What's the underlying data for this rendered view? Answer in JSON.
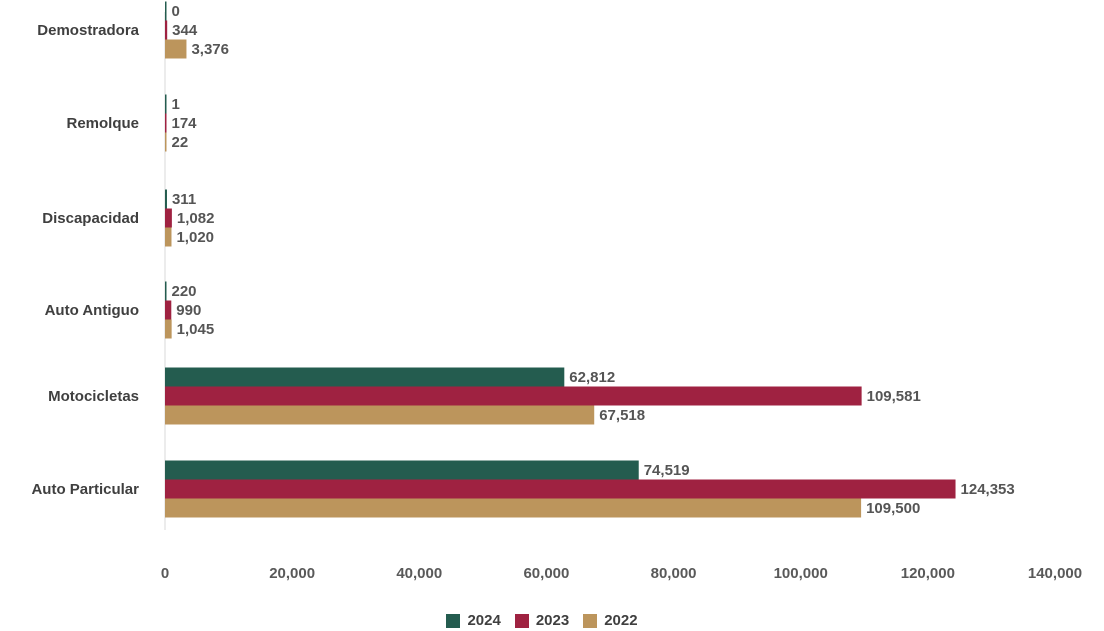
{
  "chart_data": {
    "type": "bar",
    "orientation": "horizontal",
    "categories": [
      "Auto Particular",
      "Motocicletas",
      "Auto Antiguo",
      "Discapacidad",
      "Remolque",
      "Demostradora"
    ],
    "series": [
      {
        "name": "2024",
        "color": "#245c4f",
        "values": [
          74519,
          62812,
          220,
          311,
          1,
          0
        ]
      },
      {
        "name": "2023",
        "color": "#9f2241",
        "values": [
          124353,
          109581,
          990,
          1082,
          174,
          344
        ]
      },
      {
        "name": "2022",
        "color": "#bc955c",
        "values": [
          109500,
          67518,
          1045,
          1020,
          22,
          3376
        ]
      }
    ],
    "data_labels": {
      "2024": [
        "74,519",
        "62,812",
        "220",
        "311",
        "1",
        "0"
      ],
      "2023": [
        "124,353",
        "109,581",
        "990",
        "1,082",
        "174",
        "344"
      ],
      "2022": [
        "109,500",
        "67,518",
        "1,045",
        "1,020",
        "22",
        "3,376"
      ]
    },
    "xlim": [
      0,
      140000
    ],
    "xticks": [
      0,
      20000,
      40000,
      60000,
      80000,
      100000,
      120000,
      140000
    ],
    "xtick_labels": [
      "0",
      "20,000",
      "40,000",
      "60,000",
      "80,000",
      "100,000",
      "120,000",
      "140,000"
    ],
    "title": "",
    "xlabel": "",
    "ylabel": "",
    "grid": false,
    "legend_position": "bottom"
  }
}
